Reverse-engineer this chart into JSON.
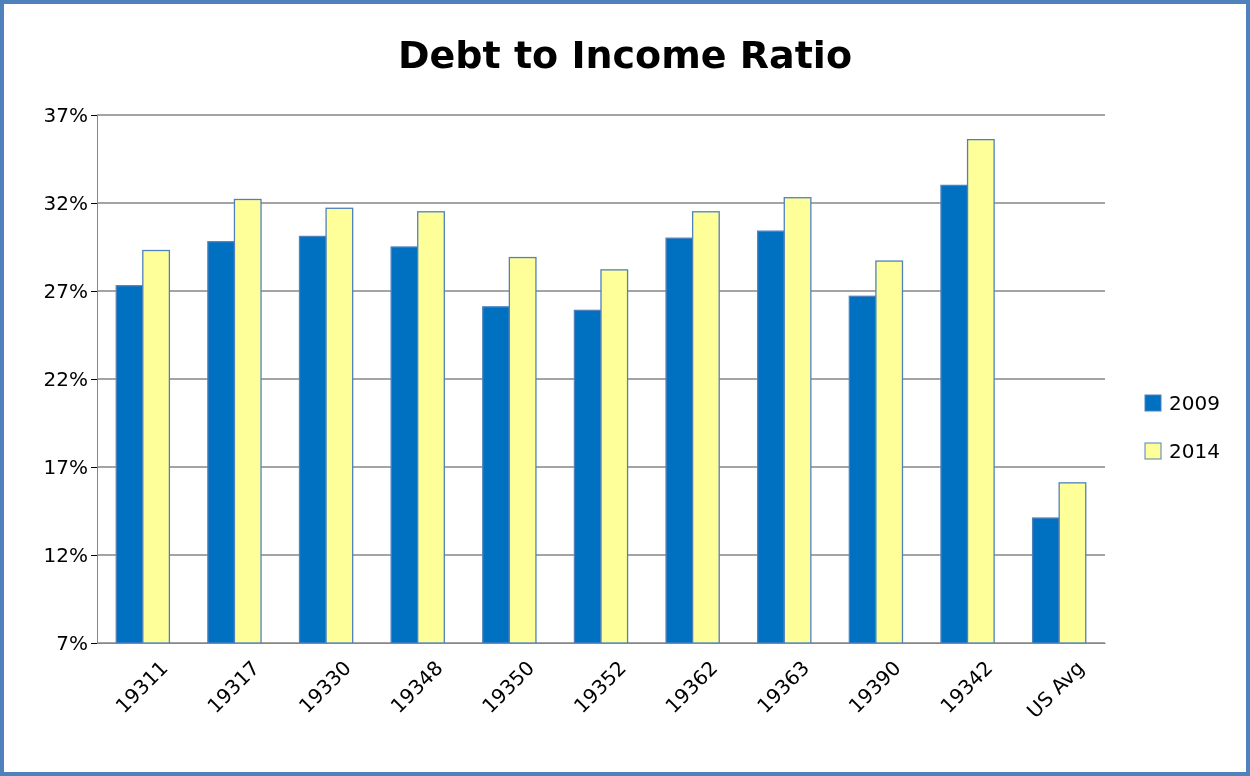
{
  "chart_data": {
    "type": "bar",
    "title": "Debt to Income Ratio",
    "categories": [
      "19311",
      "19317",
      "19330",
      "19348",
      "19350",
      "19352",
      "19362",
      "19363",
      "19390",
      "19342",
      "US Avg"
    ],
    "series": [
      {
        "name": "2009",
        "color": "#0070c0",
        "values": [
          27.3,
          29.8,
          30.1,
          29.5,
          26.1,
          25.9,
          30.0,
          30.4,
          26.7,
          33.0,
          14.1
        ]
      },
      {
        "name": "2014",
        "color": "#ffff99",
        "values": [
          29.3,
          32.2,
          31.7,
          31.5,
          28.9,
          28.2,
          31.5,
          32.3,
          28.7,
          35.6,
          16.1
        ]
      }
    ],
    "ylim": [
      7,
      37
    ],
    "yticks": [
      {
        "value": 7,
        "label": "7%"
      },
      {
        "value": 12,
        "label": "12%"
      },
      {
        "value": 17,
        "label": "17%"
      },
      {
        "value": 22,
        "label": "22%"
      },
      {
        "value": 27,
        "label": "27%"
      },
      {
        "value": 32,
        "label": "32%"
      },
      {
        "value": 37,
        "label": "37%"
      }
    ],
    "grid": "y",
    "legend": "right"
  }
}
